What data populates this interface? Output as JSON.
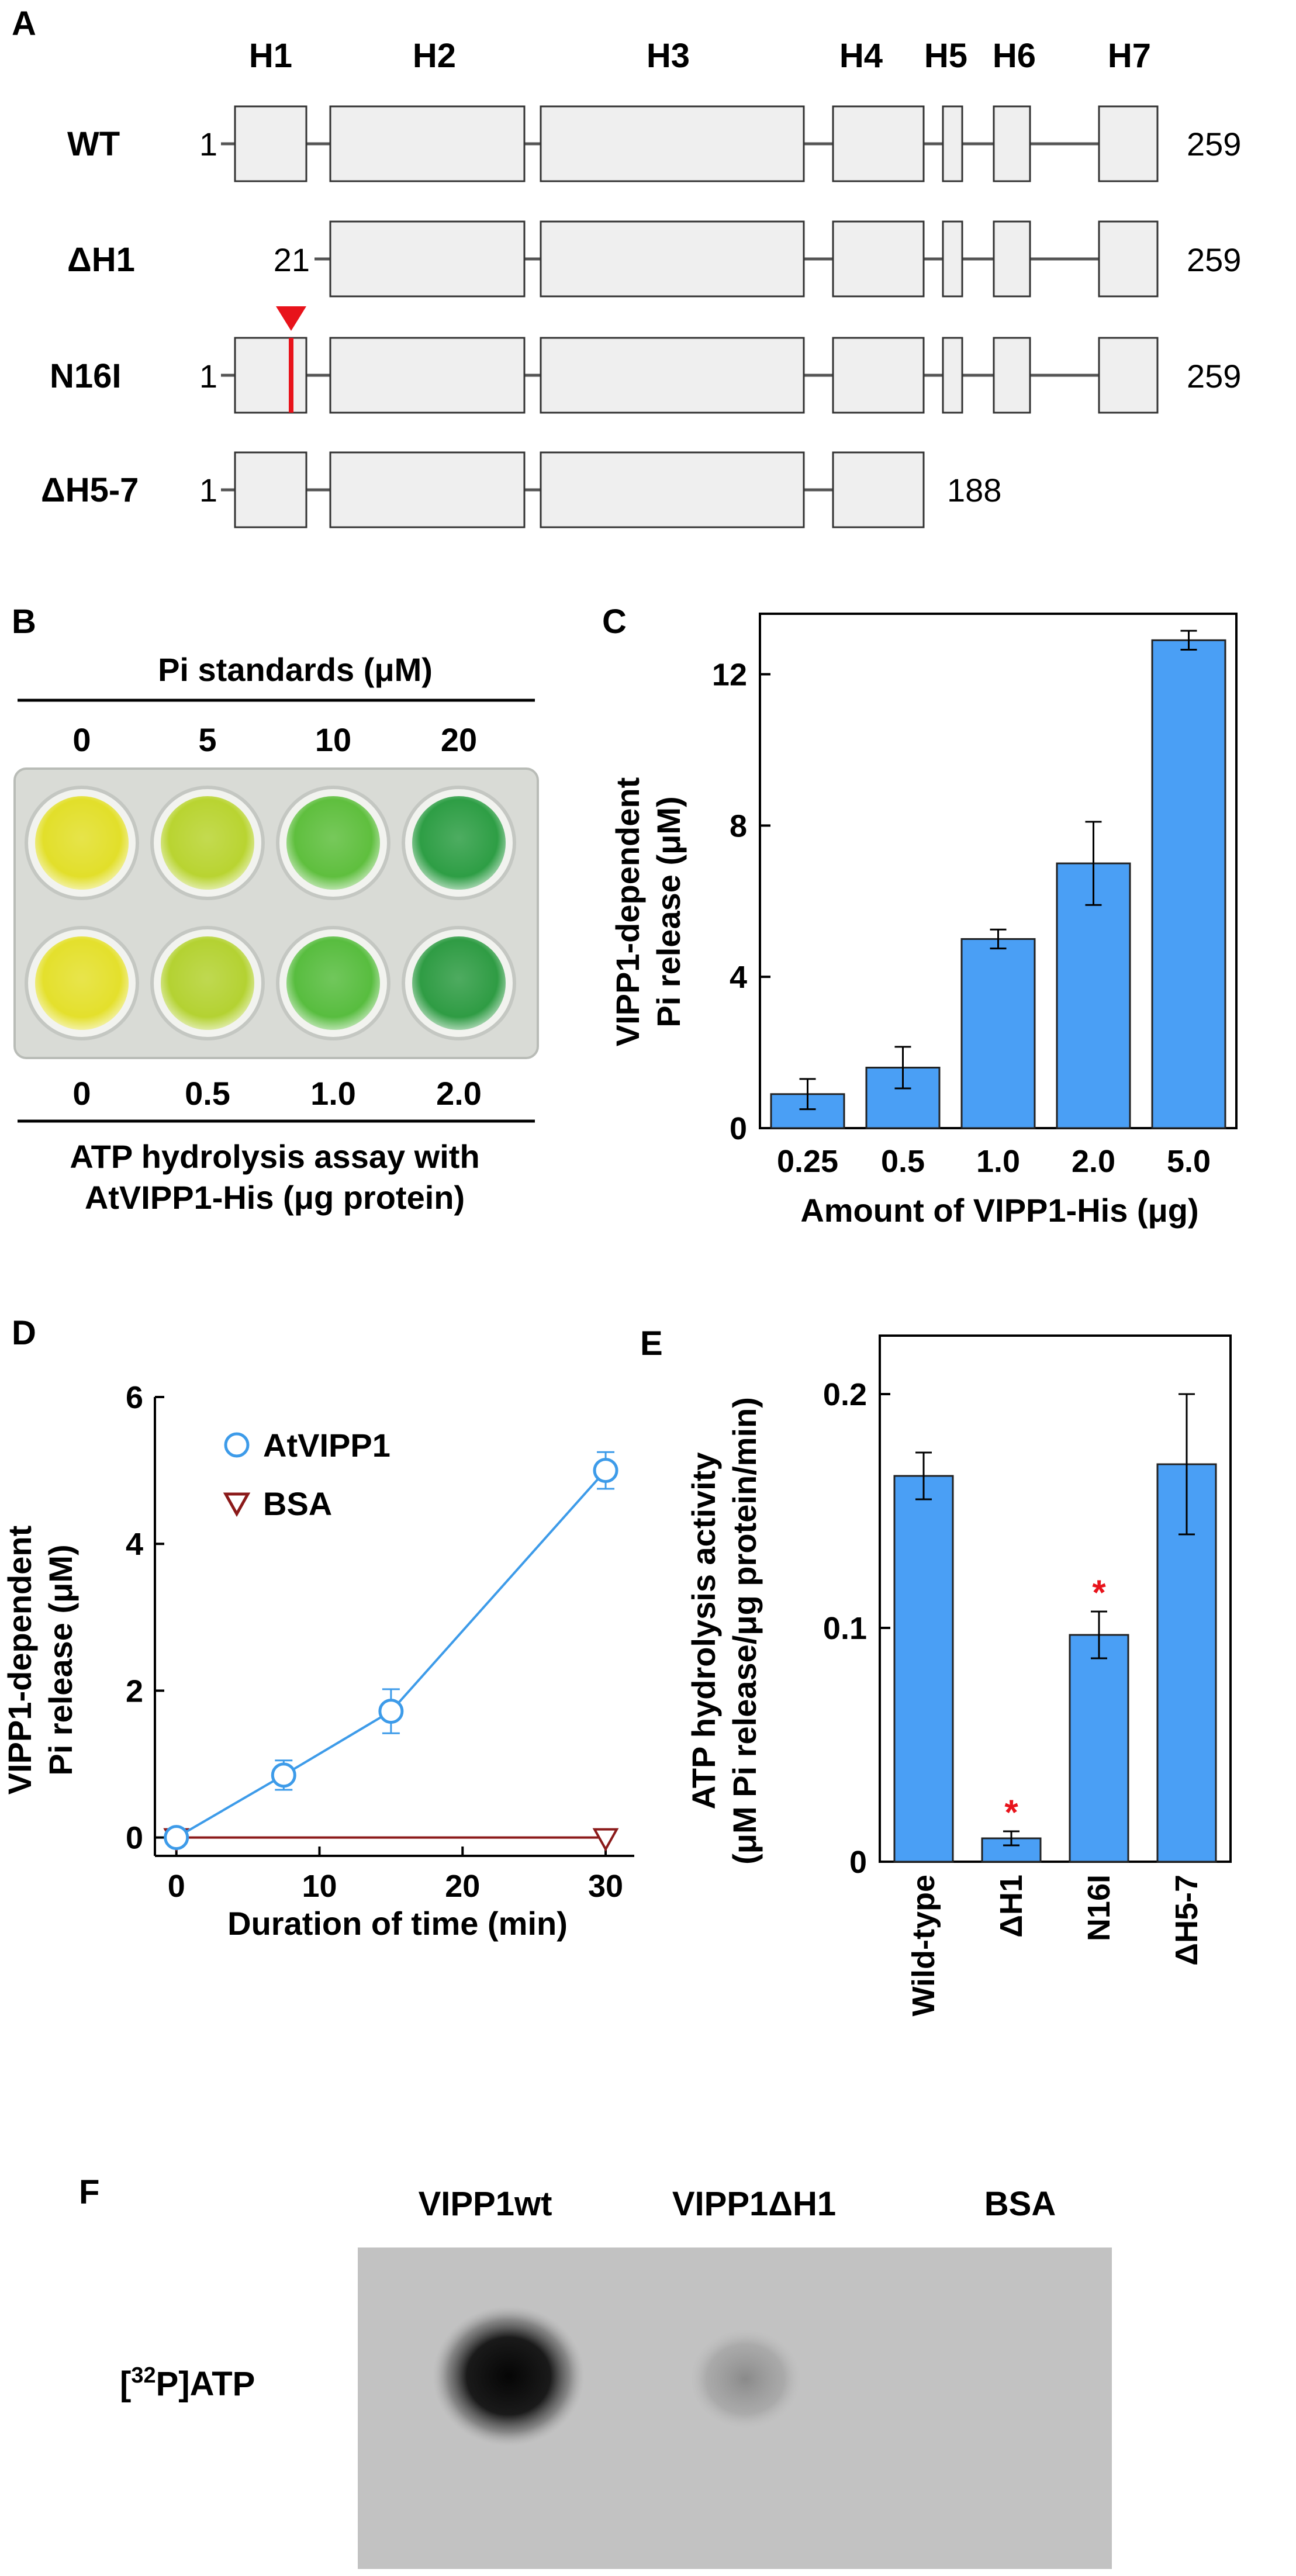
{
  "panel_labels": {
    "a": "A",
    "b": "B",
    "c": "C",
    "d": "D",
    "e": "E",
    "f": "F"
  },
  "panel_a": {
    "helix_labels": [
      "H1",
      "H2",
      "H3",
      "H4",
      "H5",
      "H6",
      "H7"
    ],
    "constructs": [
      {
        "name": "WT",
        "start": "1",
        "end": "259"
      },
      {
        "name": "ΔH1",
        "start": "21",
        "end": "259"
      },
      {
        "name": "N16I",
        "start": "1",
        "end": "259"
      },
      {
        "name": "ΔH5-7",
        "start": "1",
        "end": "188"
      }
    ]
  },
  "panel_b": {
    "top_title": "Pi standards (μM)",
    "top_values": [
      "0",
      "5",
      "10",
      "20"
    ],
    "bottom_values": [
      "0",
      "0.5",
      "1.0",
      "2.0"
    ],
    "bottom_title_line1": "ATP hydrolysis assay with",
    "bottom_title_line2": "AtVIPP1-His (μg protein)",
    "well_colors_top": [
      "#e2df2a",
      "#b9d431",
      "#5fbf3e",
      "#2e9e45"
    ],
    "well_colors_bottom": [
      "#e4e02c",
      "#b4d232",
      "#58bd3f",
      "#2f9c44"
    ]
  },
  "chart_data": [
    {
      "panel": "C",
      "type": "bar",
      "categories": [
        "0.25",
        "0.5",
        "1.0",
        "2.0",
        "5.0"
      ],
      "values": [
        0.9,
        1.6,
        5.0,
        7.0,
        12.9
      ],
      "errors": [
        0.4,
        0.55,
        0.25,
        1.1,
        0.25
      ],
      "ylim": [
        0,
        13.6
      ],
      "yticks": [
        "0",
        "4",
        "8",
        "12"
      ],
      "xlabel": "Amount of VIPP1-His (μg)",
      "ylabel_line1": "VIPP1-dependent",
      "ylabel_line2": "Pi release (μM)",
      "color": "#4a9ff5"
    },
    {
      "panel": "D",
      "type": "line",
      "xlim": [
        -1.5,
        32
      ],
      "ylim": [
        -0.25,
        6
      ],
      "xticks": [
        "0",
        "10",
        "20",
        "30"
      ],
      "yticks": [
        "0",
        "2",
        "4",
        "6"
      ],
      "xlabel": "Duration of time (min)",
      "ylabel_line1": "VIPP1-dependent",
      "ylabel_line2": "Pi release (μM)",
      "series": [
        {
          "name": "AtVIPP1",
          "color": "#3d9be9",
          "marker": "circle",
          "x": [
            0,
            7.5,
            15,
            30
          ],
          "y": [
            0,
            0.85,
            1.72,
            5.0
          ],
          "errors": [
            0,
            0.2,
            0.3,
            0.25
          ]
        },
        {
          "name": "BSA",
          "color": "#8b1a1a",
          "marker": "triangle-down",
          "x": [
            0,
            30
          ],
          "y": [
            0,
            0
          ],
          "errors": [
            0,
            0
          ]
        }
      ]
    },
    {
      "panel": "E",
      "type": "bar",
      "categories": [
        "Wild-type",
        "ΔH1",
        "N16I",
        "ΔH5-7"
      ],
      "values": [
        0.165,
        0.01,
        0.097,
        0.17
      ],
      "errors": [
        0.01,
        0.003,
        0.01,
        0.03
      ],
      "significance": [
        "",
        "*",
        "*",
        ""
      ],
      "ylim": [
        0,
        0.225
      ],
      "yticks": [
        "0",
        "0.1",
        "0.2"
      ],
      "ylabel_line1": "ATP hydrolysis activity",
      "ylabel_line2": "(μM Pi release/μg protein/min)",
      "color": "#4a9ff5"
    }
  ],
  "panel_f": {
    "column_labels": [
      "VIPP1wt",
      "VIPP1ΔH1",
      "BSA"
    ],
    "row_label_open": "[",
    "row_label_sup": "32",
    "row_label_rest": "P]ATP"
  }
}
